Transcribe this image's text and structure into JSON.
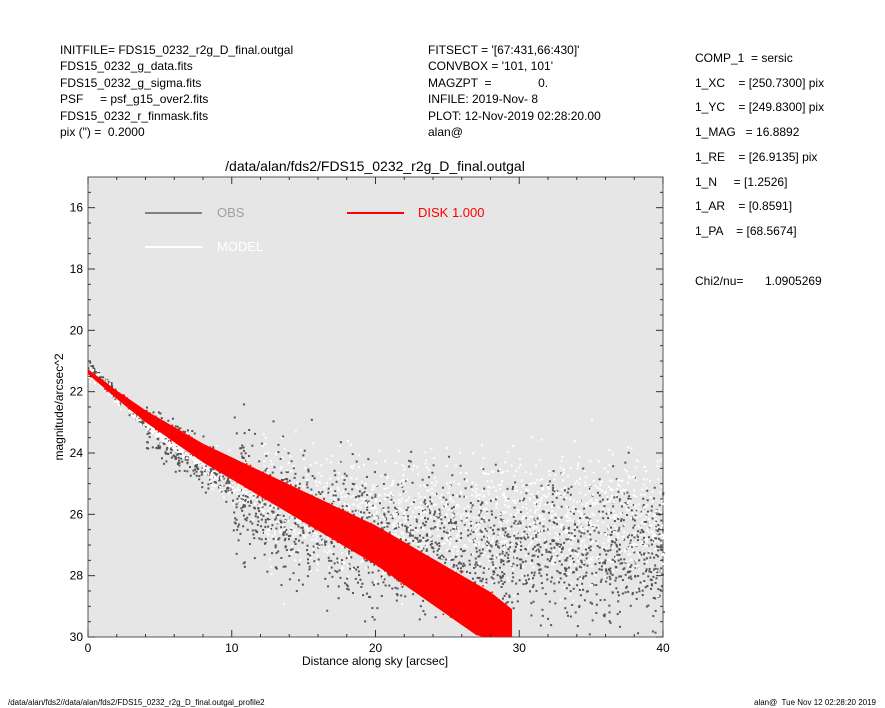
{
  "header_left": [
    "INITFILE= FDS15_0232_r2g_D_final.outgal",
    "FDS15_0232_g_data.fits",
    "FDS15_0232_g_sigma.fits",
    "PSF     = psf_g15_over2.fits",
    "FDS15_0232_r_finmask.fits",
    "pix (\") =  0.2000"
  ],
  "header_mid": [
    "FITSECT = '[67:431,66:430]'",
    "CONVBOX = '101, 101'",
    "MAGZPT  =              0.",
    "INFILE: 2019-Nov- 8",
    "PLOT: 12-Nov-2019 02:28:20.00",
    "alan@"
  ],
  "params": [
    "COMP_1  = sersic",
    "1_XC    = [250.7300] pix",
    "1_YC    = [249.8300] pix",
    "1_MAG   = 16.8892",
    "1_RE    = [26.9135] pix",
    "1_N     = [1.2526]",
    "1_AR    = [0.8591]",
    "1_PA    = [68.5674]"
  ],
  "chi2_label": "Chi2/nu=",
  "chi2_value": "1.0905269",
  "footer_left": "/data/alan/fds2//data/alan/fds2/FDS15_0232_r2g_D_final.outgal_profile2",
  "footer_right": "alan@  Tue Nov 12 02:28:20 2019",
  "chart_data": {
    "type": "scatter",
    "title": "/data/alan/fds2/FDS15_0232_r2g_D_final.outgal",
    "xlabel": "Distance along sky [arcsec]",
    "ylabel": "magnitude/arcsec^2",
    "xlim": [
      0,
      40
    ],
    "ylim": [
      30,
      15
    ],
    "y_inverted": true,
    "xticks": [
      0,
      10,
      20,
      30,
      40
    ],
    "yticks": [
      16,
      18,
      20,
      22,
      24,
      26,
      28,
      30
    ],
    "background": "#e6e6e6",
    "grid": false,
    "legend": [
      {
        "label": "OBS",
        "color": "#808080",
        "text_color": "#a0a0a0"
      },
      {
        "label": "MODEL",
        "color": "#ffffff",
        "text_color": "#ffffff"
      },
      {
        "label": "DISK  1.000",
        "color": "#ff0000",
        "text_color": "#ff0000"
      }
    ],
    "legend_placement": "top",
    "series": [
      {
        "name": "OBS",
        "color": "#555555",
        "x": [
          0.1,
          1,
          2,
          3,
          4,
          5,
          6,
          7,
          8,
          9,
          10,
          12,
          14,
          16,
          18,
          20,
          22,
          24,
          26,
          28,
          30,
          32,
          34,
          36,
          38,
          40
        ],
        "y": [
          21.2,
          21.6,
          22.1,
          22.6,
          23.0,
          23.4,
          23.7,
          24.0,
          24.3,
          24.6,
          24.9,
          25.4,
          25.8,
          26.1,
          26.4,
          26.6,
          26.7,
          26.8,
          26.8,
          26.9,
          26.9,
          26.9,
          26.9,
          27.0,
          27.0,
          27.0
        ]
      },
      {
        "name": "MODEL",
        "color": "#ffffff",
        "x": [
          0,
          5,
          10,
          15,
          20,
          25,
          30,
          35,
          40
        ],
        "y": [
          21.3,
          23.4,
          24.9,
          25.5,
          25.7,
          25.8,
          25.8,
          25.8,
          25.8
        ]
      },
      {
        "name": "DISK  1.000",
        "color": "#ff0000",
        "x": [
          0,
          2,
          4,
          6,
          8,
          10,
          12,
          14,
          16,
          18,
          20,
          22,
          24,
          26,
          28,
          29.5
        ],
        "y": [
          21.35,
          22.1,
          22.8,
          23.4,
          24.0,
          24.5,
          25.0,
          25.5,
          26.0,
          26.5,
          27.0,
          27.6,
          28.2,
          28.8,
          29.4,
          30.0
        ]
      }
    ]
  }
}
